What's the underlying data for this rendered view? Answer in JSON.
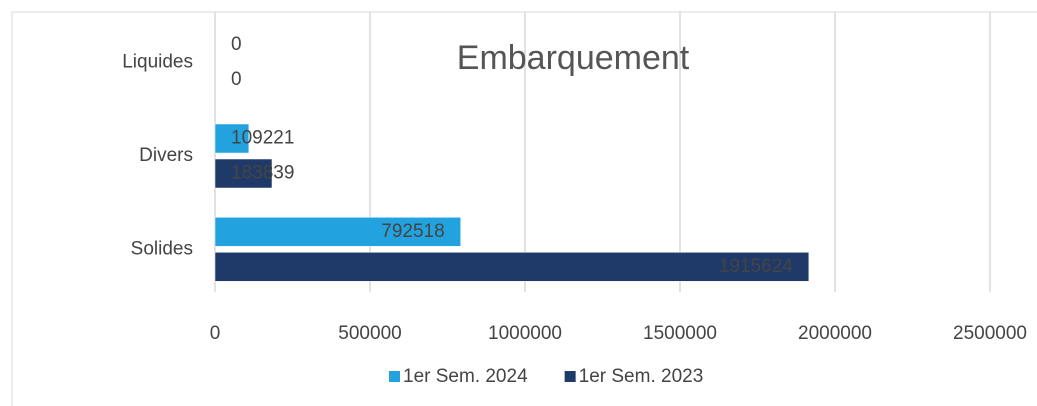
{
  "chart_data": {
    "type": "barh",
    "title": "Embarquement",
    "categories": [
      "Liquides",
      "Divers",
      "Solides"
    ],
    "series": [
      {
        "name": "1er Sem. 2024",
        "color": "#22a3e0",
        "values": [
          0,
          109221,
          792518
        ]
      },
      {
        "name": "1er Sem. 2023",
        "color": "#1f3a68",
        "values": [
          0,
          183839,
          1915624
        ]
      }
    ],
    "xlim": [
      0,
      2500000
    ],
    "xticks": [
      0,
      500000,
      1000000,
      1500000,
      2000000,
      2500000
    ],
    "grid": true,
    "legend": "bottom"
  }
}
